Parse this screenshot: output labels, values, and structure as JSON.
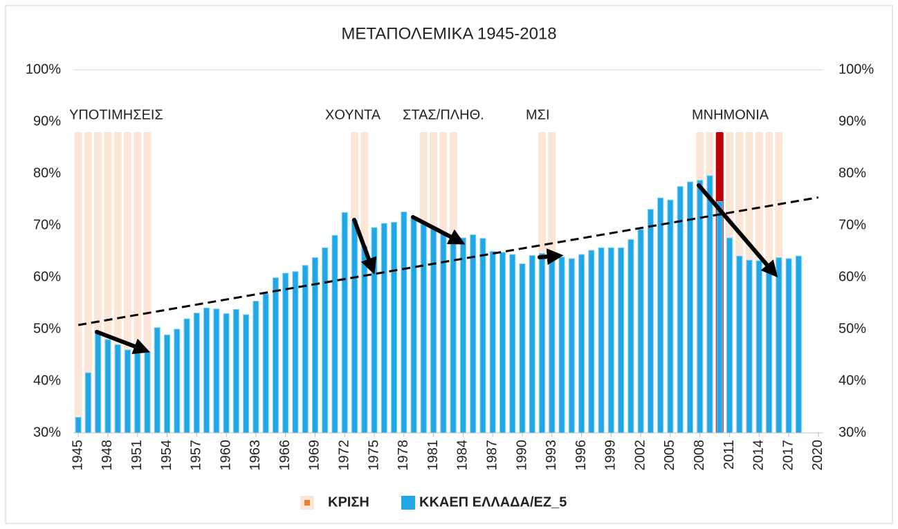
{
  "chart_data": {
    "type": "bar",
    "title": "ΜΕΤΑΠΟΛΕΜΙΚΑ  1945-2018",
    "x": [
      1945,
      1946,
      1947,
      1948,
      1949,
      1950,
      1951,
      1952,
      1953,
      1954,
      1955,
      1956,
      1957,
      1958,
      1959,
      1960,
      1961,
      1962,
      1963,
      1964,
      1965,
      1966,
      1967,
      1968,
      1969,
      1970,
      1971,
      1972,
      1973,
      1974,
      1975,
      1976,
      1977,
      1978,
      1979,
      1980,
      1981,
      1982,
      1983,
      1984,
      1985,
      1986,
      1987,
      1988,
      1989,
      1990,
      1991,
      1992,
      1993,
      1994,
      1995,
      1996,
      1997,
      1998,
      1999,
      2000,
      2001,
      2002,
      2003,
      2004,
      2005,
      2006,
      2007,
      2008,
      2009,
      2010,
      2011,
      2012,
      2013,
      2014,
      2015,
      2016,
      2017,
      2018
    ],
    "series": [
      {
        "name": "ΚΡΙΣΗ",
        "color": "#fbe5d6",
        "marker_color": "#ed7d31",
        "highlight": {
          "index": 65,
          "color": "#c00000"
        },
        "values": [
          88,
          88,
          88,
          88,
          88,
          88,
          88,
          88,
          null,
          null,
          null,
          null,
          null,
          null,
          null,
          null,
          null,
          null,
          null,
          null,
          null,
          null,
          null,
          null,
          null,
          null,
          null,
          null,
          88,
          88,
          null,
          null,
          null,
          null,
          null,
          88,
          88,
          88,
          88,
          null,
          null,
          null,
          null,
          null,
          null,
          null,
          null,
          88,
          88,
          null,
          null,
          null,
          null,
          null,
          null,
          null,
          null,
          null,
          null,
          null,
          null,
          null,
          null,
          88,
          88,
          88,
          88,
          88,
          88,
          88,
          88,
          88,
          null,
          null
        ]
      },
      {
        "name": "ΚΚΑΕΠ ΕΛΛΑΔΑ/ΕΖ_5",
        "color": "#22a7e6",
        "values": [
          33.0,
          41.6,
          49.5,
          48.0,
          47.0,
          46.0,
          45.5,
          45.6,
          50.3,
          48.9,
          50.0,
          52.0,
          53.1,
          54.1,
          53.9,
          53.0,
          53.8,
          52.8,
          55.4,
          56.8,
          59.9,
          60.8,
          61.1,
          62.3,
          63.8,
          65.7,
          68.1,
          72.5,
          71.0,
          66.0,
          69.6,
          70.4,
          70.6,
          72.6,
          71.6,
          70.3,
          69.4,
          68.7,
          68.0,
          67.6,
          68.2,
          67.5,
          65.0,
          64.8,
          64.4,
          62.6,
          64.2,
          64.6,
          64.8,
          63.9,
          63.6,
          64.4,
          65.2,
          65.7,
          65.7,
          65.7,
          67.3,
          69.2,
          73.1,
          75.3,
          74.9,
          77.5,
          78.4,
          78.7,
          79.6,
          74.6,
          67.6,
          64.1,
          63.3,
          63.2,
          62.0,
          63.8,
          63.6,
          64.1
        ]
      }
    ],
    "trendline": {
      "x": [
        1945,
        2020
      ],
      "values": [
        50.8,
        75.4
      ]
    },
    "annotations": [
      "ΥΠΟΤΙΜΗΣΕΙΣ",
      "ΧΟΥΝΤΑ",
      "ΣΤΑΣ/ΠΛΗΘ.",
      "ΜΣΙ",
      "ΜΝΗΜΟΝΙΑ"
    ],
    "xlim": [
      1944.5,
      2020.5
    ],
    "xticks": [
      1945,
      1948,
      1951,
      1954,
      1957,
      1960,
      1963,
      1966,
      1969,
      1972,
      1975,
      1978,
      1981,
      1984,
      1987,
      1990,
      1993,
      1996,
      1999,
      2002,
      2005,
      2008,
      2011,
      2014,
      2017,
      2020
    ],
    "ylim": [
      30,
      100
    ],
    "yticks": [
      {
        "value": 30,
        "label": "30%"
      },
      {
        "value": 40,
        "label": "40%"
      },
      {
        "value": 50,
        "label": "50%"
      },
      {
        "value": 60,
        "label": "60%"
      },
      {
        "value": 70,
        "label": "70%"
      },
      {
        "value": 80,
        "label": "80%"
      },
      {
        "value": 90,
        "label": "90%"
      },
      {
        "value": 100,
        "label": "100%"
      }
    ],
    "y2lim": [
      30,
      100
    ],
    "y2ticks": [
      {
        "value": 30,
        "label": "30%"
      },
      {
        "value": 40,
        "label": "40%"
      },
      {
        "value": 50,
        "label": "50%"
      },
      {
        "value": 60,
        "label": "60%"
      },
      {
        "value": 70,
        "label": "70%"
      },
      {
        "value": 80,
        "label": "80%"
      },
      {
        "value": 90,
        "label": "90%"
      },
      {
        "value": 100,
        "label": "100%"
      }
    ],
    "legend": "bottom"
  }
}
